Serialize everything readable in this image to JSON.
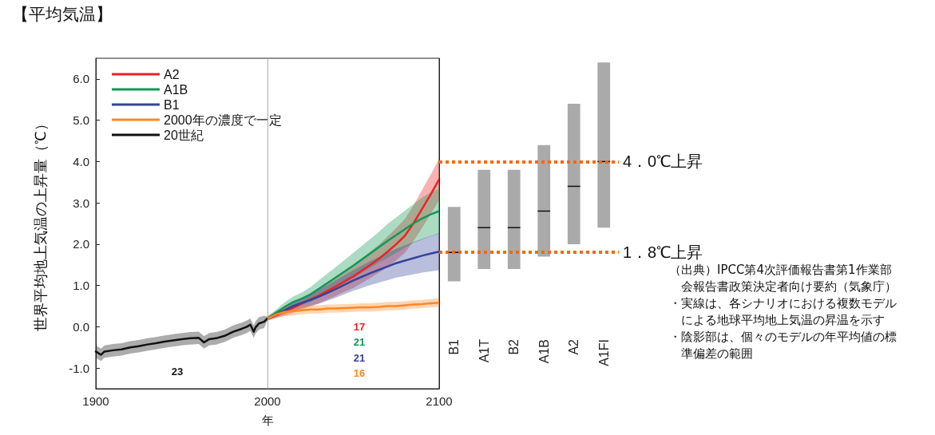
{
  "chart_data": [
    {
      "type": "line",
      "title": "【平均気温】",
      "xlabel": "年",
      "ylabel": "世界平均地上気温の上昇量（℃）",
      "xlim": [
        1900,
        2100
      ],
      "xticks": [
        1900,
        2000,
        2100
      ],
      "ylim": [
        -1.5,
        6.5
      ],
      "yticks": [
        {
          "value": -1,
          "label": "-1.0"
        },
        {
          "value": 0,
          "label": "0.0"
        },
        {
          "value": 1,
          "label": "1.0"
        },
        {
          "value": 2,
          "label": "2.0"
        },
        {
          "value": 3,
          "label": "3.0"
        },
        {
          "value": 4,
          "label": "4.0"
        },
        {
          "value": 5,
          "label": "5.0"
        },
        {
          "value": 6,
          "label": "6.0"
        }
      ],
      "grid": false,
      "legend": "top left",
      "marker": "none",
      "line_style": "solid",
      "ref_lines": [
        {
          "axis": "x",
          "value": 2000,
          "color": "#aaaaaa"
        }
      ],
      "annotations": [
        "17",
        "21",
        "21",
        "16",
        "23"
      ],
      "series": [
        {
          "name": "A2",
          "color": "#ee2222",
          "x": [
            2000,
            2005,
            2010,
            2015,
            2020,
            2025,
            2030,
            2035,
            2040,
            2045,
            2050,
            2055,
            2060,
            2065,
            2070,
            2075,
            2080,
            2085,
            2090,
            2095,
            2100
          ],
          "values": [
            0.2,
            0.28,
            0.37,
            0.46,
            0.56,
            0.66,
            0.76,
            0.87,
            0.98,
            1.1,
            1.22,
            1.36,
            1.5,
            1.65,
            1.82,
            2.0,
            2.2,
            2.5,
            2.85,
            3.2,
            3.57
          ],
          "lower": [
            0.15,
            0.21,
            0.27,
            0.34,
            0.42,
            0.5,
            0.57,
            0.66,
            0.75,
            0.85,
            0.94,
            1.06,
            1.18,
            1.31,
            1.45,
            1.61,
            1.79,
            2.07,
            2.39,
            2.72,
            3.07
          ],
          "upper": [
            0.25,
            0.35,
            0.47,
            0.58,
            0.7,
            0.82,
            0.95,
            1.08,
            1.21,
            1.35,
            1.5,
            1.66,
            1.82,
            1.99,
            2.19,
            2.39,
            2.61,
            2.93,
            3.31,
            3.68,
            4.07
          ]
        },
        {
          "name": "A1B",
          "color": "#119955",
          "x": [
            2000,
            2005,
            2010,
            2015,
            2020,
            2025,
            2030,
            2035,
            2040,
            2045,
            2050,
            2055,
            2060,
            2065,
            2070,
            2075,
            2080,
            2085,
            2090,
            2095,
            2100
          ],
          "values": [
            0.2,
            0.34,
            0.48,
            0.6,
            0.68,
            0.78,
            0.92,
            1.06,
            1.2,
            1.34,
            1.48,
            1.63,
            1.78,
            1.93,
            2.08,
            2.22,
            2.36,
            2.5,
            2.62,
            2.72,
            2.8
          ],
          "lower": [
            0.15,
            0.26,
            0.37,
            0.47,
            0.53,
            0.6,
            0.71,
            0.83,
            0.95,
            1.06,
            1.17,
            1.3,
            1.43,
            1.56,
            1.67,
            1.79,
            1.91,
            2.03,
            2.11,
            2.19,
            2.25
          ],
          "upper": [
            0.25,
            0.42,
            0.59,
            0.73,
            0.83,
            0.96,
            1.13,
            1.29,
            1.45,
            1.62,
            1.79,
            1.96,
            2.13,
            2.3,
            2.49,
            2.65,
            2.81,
            2.97,
            3.13,
            3.25,
            3.35
          ]
        },
        {
          "name": "B1",
          "color": "#334499",
          "x": [
            2000,
            2005,
            2010,
            2015,
            2020,
            2025,
            2030,
            2035,
            2040,
            2045,
            2050,
            2055,
            2060,
            2065,
            2070,
            2075,
            2080,
            2085,
            2090,
            2095,
            2100
          ],
          "values": [
            0.2,
            0.3,
            0.4,
            0.5,
            0.58,
            0.65,
            0.73,
            0.82,
            0.92,
            1.02,
            1.12,
            1.21,
            1.3,
            1.38,
            1.46,
            1.54,
            1.6,
            1.66,
            1.72,
            1.77,
            1.82
          ],
          "lower": [
            0.15,
            0.23,
            0.31,
            0.39,
            0.45,
            0.5,
            0.56,
            0.63,
            0.71,
            0.79,
            0.87,
            0.94,
            1.01,
            1.07,
            1.13,
            1.19,
            1.23,
            1.27,
            1.31,
            1.34,
            1.37
          ],
          "upper": [
            0.25,
            0.37,
            0.49,
            0.61,
            0.71,
            0.8,
            0.9,
            1.01,
            1.13,
            1.25,
            1.37,
            1.48,
            1.59,
            1.69,
            1.79,
            1.89,
            1.97,
            2.05,
            2.13,
            2.2,
            2.27
          ]
        },
        {
          "name": "2000年の濃度で一定",
          "color": "#ff8822",
          "x": [
            2000,
            2005,
            2010,
            2015,
            2020,
            2025,
            2030,
            2035,
            2040,
            2045,
            2050,
            2055,
            2060,
            2065,
            2070,
            2075,
            2080,
            2085,
            2090,
            2095,
            2100
          ],
          "values": [
            0.2,
            0.3,
            0.36,
            0.38,
            0.4,
            0.42,
            0.42,
            0.44,
            0.44,
            0.45,
            0.46,
            0.47,
            0.47,
            0.48,
            0.5,
            0.5,
            0.52,
            0.54,
            0.55,
            0.57,
            0.58
          ],
          "lower": [
            0.15,
            0.22,
            0.26,
            0.28,
            0.3,
            0.32,
            0.32,
            0.34,
            0.34,
            0.35,
            0.36,
            0.37,
            0.37,
            0.38,
            0.4,
            0.4,
            0.42,
            0.44,
            0.45,
            0.47,
            0.48
          ],
          "upper": [
            0.25,
            0.38,
            0.46,
            0.48,
            0.5,
            0.52,
            0.52,
            0.54,
            0.54,
            0.55,
            0.56,
            0.57,
            0.57,
            0.58,
            0.6,
            0.6,
            0.62,
            0.64,
            0.65,
            0.67,
            0.7
          ]
        },
        {
          "name": "20世紀",
          "color": "#111111",
          "x": [
            1900,
            1903,
            1905,
            1910,
            1915,
            1920,
            1925,
            1930,
            1935,
            1940,
            1945,
            1950,
            1955,
            1960,
            1963,
            1966,
            1970,
            1975,
            1980,
            1985,
            1988,
            1990,
            1992,
            1993,
            1995,
            1998,
            2000
          ],
          "values": [
            -0.6,
            -0.68,
            -0.6,
            -0.57,
            -0.55,
            -0.5,
            -0.47,
            -0.43,
            -0.4,
            -0.36,
            -0.33,
            -0.3,
            -0.28,
            -0.27,
            -0.38,
            -0.3,
            -0.28,
            -0.22,
            -0.12,
            -0.05,
            0.0,
            0.05,
            -0.12,
            -0.02,
            0.08,
            0.12,
            0.2
          ],
          "lower": [
            -0.75,
            -0.83,
            -0.75,
            -0.72,
            -0.7,
            -0.65,
            -0.62,
            -0.58,
            -0.55,
            -0.51,
            -0.48,
            -0.45,
            -0.43,
            -0.42,
            -0.53,
            -0.45,
            -0.43,
            -0.37,
            -0.27,
            -0.2,
            -0.15,
            -0.1,
            -0.27,
            -0.17,
            -0.07,
            -0.03,
            0.15
          ],
          "upper": [
            -0.45,
            -0.53,
            -0.45,
            -0.42,
            -0.4,
            -0.35,
            -0.32,
            -0.28,
            -0.25,
            -0.21,
            -0.18,
            -0.15,
            -0.13,
            -0.12,
            -0.23,
            -0.15,
            -0.13,
            -0.07,
            0.03,
            0.1,
            0.15,
            0.2,
            0.03,
            0.13,
            0.23,
            0.27,
            0.25
          ]
        }
      ]
    },
    {
      "type": "box",
      "categories": [
        "B1",
        "A1T",
        "B2",
        "A1B",
        "A2",
        "A1FI"
      ],
      "ylim": [
        -1.5,
        6.5
      ],
      "tick_labels": "x",
      "color": "#aaaaaa",
      "boxes": [
        {
          "low": 1.1,
          "q1": 1.1,
          "median": 1.8,
          "q3": 2.9,
          "high": 2.9
        },
        {
          "low": 1.4,
          "q1": 1.4,
          "median": 2.4,
          "q3": 3.8,
          "high": 3.8
        },
        {
          "low": 1.4,
          "q1": 1.4,
          "median": 2.4,
          "q3": 3.8,
          "high": 3.8
        },
        {
          "low": 1.7,
          "q1": 1.7,
          "median": 2.8,
          "q3": 4.4,
          "high": 4.4
        },
        {
          "low": 2.0,
          "q1": 2.0,
          "median": 3.4,
          "q3": 5.4,
          "high": 5.4
        },
        {
          "low": 2.4,
          "q1": 2.4,
          "median": 4.0,
          "q3": 6.4,
          "high": 6.4
        }
      ],
      "ref_lines": [
        {
          "axis": "y",
          "value": 1.8,
          "label": "1．8℃上昇",
          "color": "#ff6600",
          "line_style": "dotted"
        },
        {
          "axis": "y",
          "value": 4.0,
          "label": "4．0℃上昇",
          "color": "#ff6600",
          "line_style": "dotted"
        }
      ],
      "annotations": [
        "（出典）IPCC第4次評価報告書第1作業部会報告書政策決定者向け要約（気象庁）",
        "・実線は、各シナリオにおける複数モデルによる地球平均地上気温の昇温を示す",
        "・陰影部は、個々のモデルの年平均値の標準偏差の範囲"
      ]
    }
  ]
}
